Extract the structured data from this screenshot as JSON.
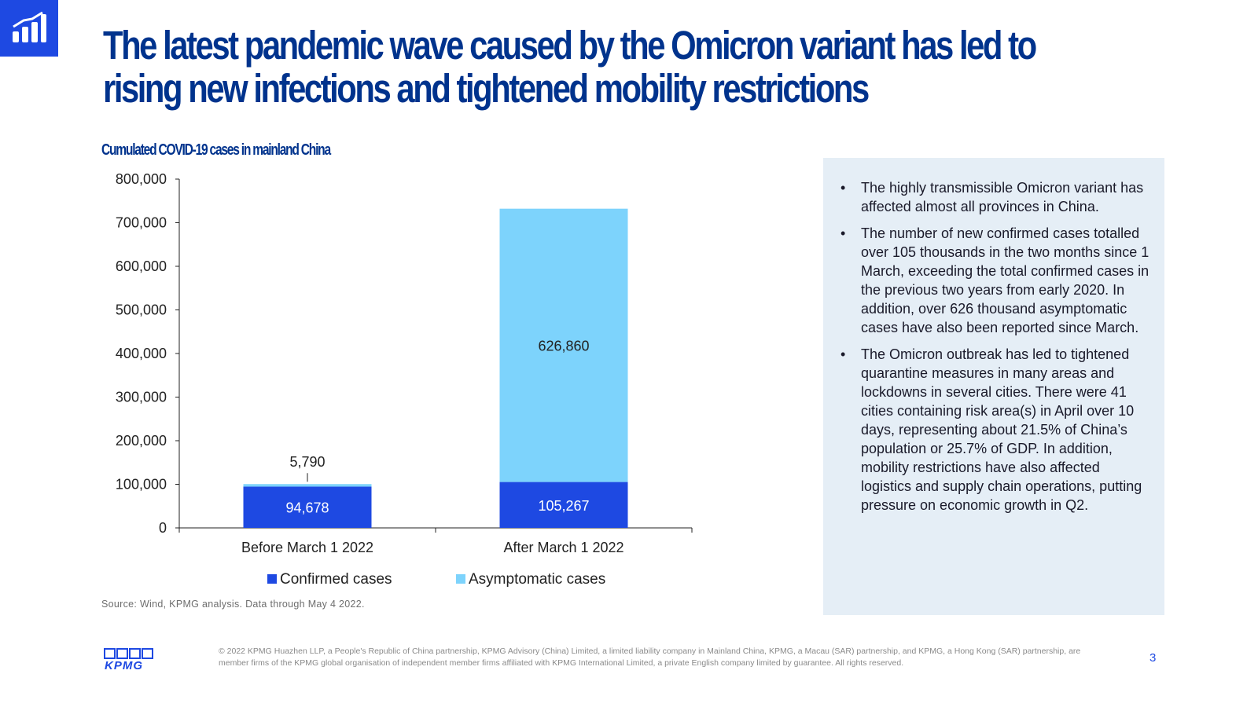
{
  "header": {
    "title_line1": "The latest pandemic wave caused by the Omicron variant has led to",
    "title_line2": "rising new infections and tightened mobility restrictions",
    "badge_icon": "bar-chart-growth-icon"
  },
  "chart_data": {
    "type": "bar",
    "stacked": true,
    "title": "Cumulated COVID-19 cases in mainland China",
    "categories": [
      "Before March 1 2022",
      "After March 1 2022"
    ],
    "series": [
      {
        "name": "Confirmed cases",
        "values": [
          94678,
          105267
        ],
        "color": "#1e49e2",
        "labels": [
          "94,678",
          "105,267"
        ]
      },
      {
        "name": "Asymptomatic cases",
        "values": [
          5790,
          626860
        ],
        "color": "#7dd3fc",
        "labels": [
          "5,790",
          "626,860"
        ]
      }
    ],
    "ylim": [
      0,
      800000
    ],
    "yticks": [
      0,
      100000,
      200000,
      300000,
      400000,
      500000,
      600000,
      700000,
      800000
    ],
    "ytick_labels": [
      "0",
      "100,000",
      "200,000",
      "300,000",
      "400,000",
      "500,000",
      "600,000",
      "700,000",
      "800,000"
    ],
    "xlabel": "",
    "ylabel": "",
    "grid": false,
    "legend": "bottom"
  },
  "source": "Source: Wind, KPMG analysis. Data through May 4 2022.",
  "side_panel": {
    "bullets": [
      "The highly transmissible Omicron variant has affected almost all provinces in China.",
      "The number of new confirmed cases totalled over 105 thousands in the two months since 1 March, exceeding the total confirmed cases in the previous two years from early 2020. In addition, over 626 thousand asymptomatic cases have also been reported since March.",
      "The Omicron outbreak has led to tightened quarantine measures in many areas and lockdowns in several cities. There were 41 cities containing risk area(s) in April over 10 days, representing about 21.5% of China’s population or 25.7% of GDP. In addition, mobility restrictions have also affected logistics and supply chain operations, putting pressure on economic growth in Q2."
    ],
    "bullet_char": "•"
  },
  "footer": {
    "logo_text": "KPMG",
    "copyright": "© 2022 KPMG Huazhen LLP, a People's Republic of China partnership, KPMG Advisory (China) Limited, a limited liability company in Mainland China, KPMG, a Macau (SAR) partnership, and KPMG, a Hong Kong (SAR) partnership, are member firms of the KPMG global organisation of independent member firms affiliated with KPMG International Limited, a private English company limited by guarantee. All rights reserved.",
    "page_number": "3"
  },
  "colors": {
    "brand_navy": "#00338d",
    "brand_blue": "#1e49e2",
    "light_blue": "#7dd3fc",
    "panel_bg": "#e5eef6"
  }
}
